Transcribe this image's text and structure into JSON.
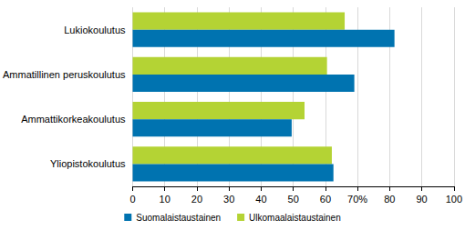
{
  "chart_data": {
    "type": "bar",
    "orientation": "horizontal",
    "categories": [
      "Lukiokoulutus",
      "Ammatillinen peruskoulutus",
      "Ammattikorkeakoulutus",
      "Yliopistokoulutus"
    ],
    "series": [
      {
        "name": "Suomalaistaustainen",
        "color": "#0073b0",
        "values": [
          81.5,
          69,
          49.5,
          62.5
        ]
      },
      {
        "name": "Ulkomaalaistaustainen",
        "color": "#b4d334",
        "values": [
          66,
          60.5,
          53.5,
          62
        ]
      }
    ],
    "xlim": [
      0,
      100
    ],
    "xticks": [
      0,
      10,
      20,
      30,
      40,
      50,
      60,
      {
        "value": 70,
        "label": "70%"
      },
      80,
      90,
      100
    ],
    "grid": true,
    "legend": "bottom"
  }
}
